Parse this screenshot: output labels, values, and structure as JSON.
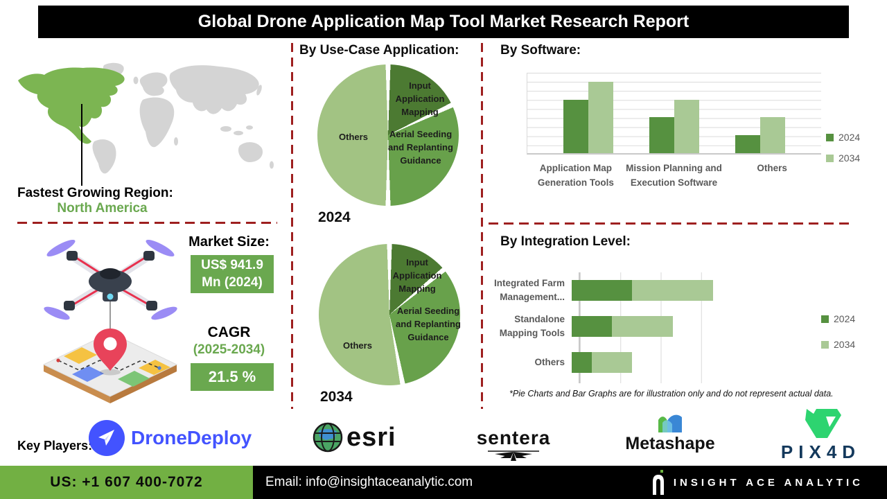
{
  "header": {
    "title": "Global Drone Application Map Tool Market Research Report"
  },
  "region": {
    "label": "Fastest Growing Region:",
    "value": "North America",
    "value_color": "#6aa84f"
  },
  "market": {
    "size_label": "Market Size:",
    "size_line1": "US$ 941.9",
    "size_line2": "Mn (2024)",
    "cagr_label": "CAGR",
    "cagr_period": "(2025-2034)",
    "cagr_value": "21.5 %"
  },
  "chart_data": [
    {
      "type": "pie",
      "title": "By Use-Case Application:",
      "year": "2024",
      "slices": [
        {
          "label": "Input Application Mapping",
          "value": 18,
          "color": "#4c7a32"
        },
        {
          "label": "Aerial Seeding and Replanting Guidance",
          "value": 32,
          "color": "#68a14b"
        },
        {
          "label": "Others",
          "value": 50,
          "color": "#a2c383"
        }
      ]
    },
    {
      "type": "pie",
      "year": "2034",
      "slices": [
        {
          "label": "Input Application Mapping",
          "value": 14,
          "color": "#4c7a32"
        },
        {
          "label": "Aerial Seeding and Replanting Guidance",
          "value": 33,
          "color": "#68a14b"
        },
        {
          "label": "Others",
          "value": 53,
          "color": "#a2c383"
        }
      ]
    },
    {
      "type": "bar",
      "title": "By Software:",
      "categories": [
        "Application Map Generation Tools",
        "Mission Planning and Execution Software",
        "Others"
      ],
      "series": [
        {
          "name": "2024",
          "color": "#569140",
          "values": [
            6,
            4,
            2
          ]
        },
        {
          "name": "2034",
          "color": "#a9c995",
          "values": [
            8,
            6,
            4
          ]
        }
      ],
      "ylim": [
        0,
        9
      ],
      "grid": true,
      "legend_position": "right"
    },
    {
      "type": "bar",
      "orientation": "horizontal",
      "stacked": true,
      "title": "By Integration Level:",
      "categories": [
        "Integrated Farm Management...",
        "Standalone Mapping Tools",
        "Others"
      ],
      "series": [
        {
          "name": "2024",
          "color": "#569140",
          "values": [
            1.5,
            1,
            0.5
          ]
        },
        {
          "name": "2034",
          "color": "#a9c995",
          "values": [
            2,
            1.5,
            1
          ]
        }
      ],
      "xlim": [
        0,
        4
      ],
      "grid": true,
      "legend_position": "right"
    }
  ],
  "footnote": "*Pie Charts and Bar Graphs are for illustration only and do not represent actual data.",
  "key_players": {
    "label": "Key Players:",
    "players": [
      {
        "name": "DroneDeploy",
        "icon": "paper-plane-icon",
        "brand_color": "#4353ff"
      },
      {
        "name": "esri",
        "icon": "globe-icon",
        "brand_color": "#111111"
      },
      {
        "name": "sentera",
        "icon": "fan-rays-icon",
        "brand_color": "#111111"
      },
      {
        "name": "Metashape",
        "icon": "mountain-ribbon-icon",
        "brand_color": "#111111"
      },
      {
        "name": "PIX4D",
        "icon": "green-chevron-mark-icon",
        "brand_color": "#14395c"
      }
    ]
  },
  "footer": {
    "phone": "US: +1 607 400-7072",
    "email": "Email: info@insightaceanalytic.com",
    "brand": "INSIGHT ACE ANALYTIC",
    "brand_icon": "a-monogram-icon"
  },
  "colors": {
    "accent_green": "#6aa84f",
    "separator_red": "#9e1f1f",
    "map_highlight_green": "#7cb552",
    "map_gray": "#d4d4d4",
    "footer_green": "#72b043"
  }
}
